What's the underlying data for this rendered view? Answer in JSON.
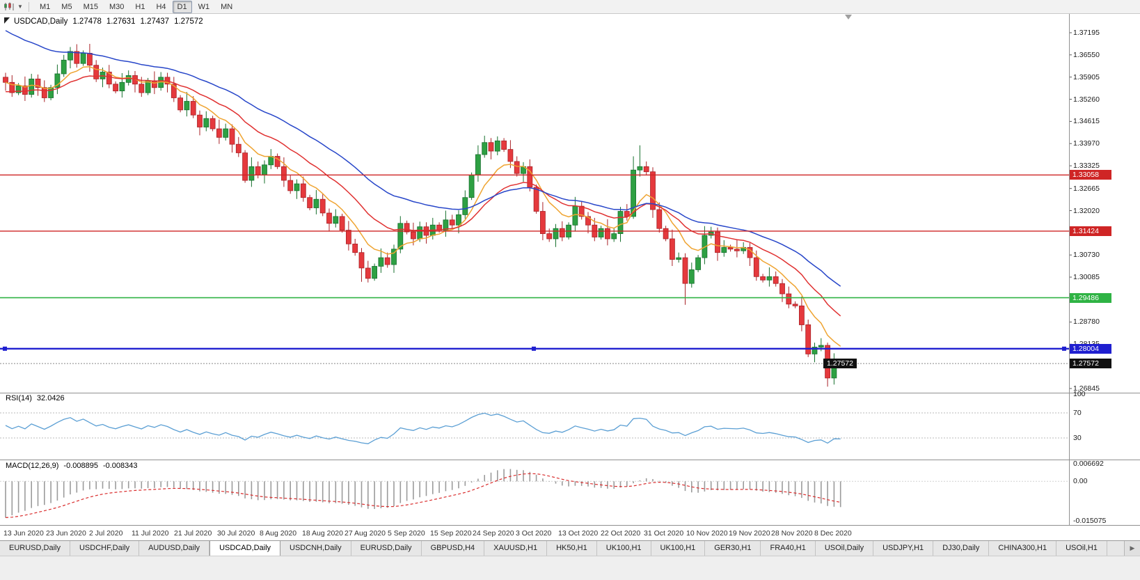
{
  "toolbar": {
    "timeframes": [
      "M1",
      "M5",
      "M15",
      "M30",
      "H1",
      "H4",
      "D1",
      "W1",
      "MN"
    ],
    "selected_timeframe": "D1"
  },
  "header": {
    "symbol_period": "USDCAD,Daily",
    "open": "1.27478",
    "high": "1.27631",
    "low": "1.27437",
    "close": "1.27572"
  },
  "price_axis": {
    "ticks": [
      "1.37195",
      "1.36550",
      "1.35905",
      "1.35260",
      "1.34615",
      "1.33970",
      "1.33325",
      "1.32665",
      "1.32020",
      "1.31375",
      "1.30730",
      "1.30085",
      "1.29440",
      "1.28780",
      "1.28135",
      "1.27490",
      "1.26845"
    ]
  },
  "date_axis": {
    "labels": [
      "13 Jun 2020",
      "23 Jun 2020",
      "2 Jul 2020",
      "11 Jul 2020",
      "21 Jul 2020",
      "30 Jul 2020",
      "8 Aug 2020",
      "18 Aug 2020",
      "27 Aug 2020",
      "5 Sep 2020",
      "15 Sep 2020",
      "24 Sep 2020",
      "3 Oct 2020",
      "13 Oct 2020",
      "22 Oct 2020",
      "31 Oct 2020",
      "10 Nov 2020",
      "19 Nov 2020",
      "28 Nov 2020",
      "8 Dec 2020"
    ]
  },
  "rsi_panel": {
    "label": "RSI(14)",
    "value": "32.0426",
    "axis_ticks": [
      {
        "text": "100",
        "v": 100
      },
      {
        "text": "70",
        "v": 70
      },
      {
        "text": "30",
        "v": 30
      }
    ],
    "level_lines": [
      70,
      30
    ]
  },
  "macd_panel": {
    "label": "MACD(12,26,9)",
    "value_main": "-0.008895",
    "value_signal": "-0.008343",
    "axis_ticks": [
      {
        "text": "0.006692",
        "v": 0.006692
      },
      {
        "text": "0.00",
        "v": 0
      },
      {
        "text": "-0.015075",
        "v": -0.015075
      }
    ]
  },
  "hlines": [
    {
      "name": "resistance-line-upper",
      "price": 1.33058,
      "label": "1.33058",
      "color": "#cf2525",
      "width": 1.4,
      "selected": false
    },
    {
      "name": "resistance-line-lower",
      "price": 1.31424,
      "label": "1.31424",
      "color": "#cf2525",
      "width": 1.4,
      "selected": false
    },
    {
      "name": "support-line-green",
      "price": 1.29486,
      "label": "1.29486",
      "color": "#2fb344",
      "width": 1.6,
      "selected": false
    },
    {
      "name": "support-line-blue",
      "price": 1.28004,
      "label": "1.28004",
      "color": "#1f1fd0",
      "width": 2.4,
      "selected": true
    }
  ],
  "last_price": {
    "value": "1.27572",
    "badge_color": "#111111"
  },
  "tabs": {
    "items": [
      {
        "label": "EURUSD,Daily",
        "active": false
      },
      {
        "label": "USDCHF,Daily",
        "active": false
      },
      {
        "label": "AUDUSD,Daily",
        "active": false
      },
      {
        "label": "USDCAD,Daily",
        "active": true
      },
      {
        "label": "USDCNH,Daily",
        "active": false
      },
      {
        "label": "EURUSD,Daily",
        "active": false
      },
      {
        "label": "GBPUSD,H4",
        "active": false
      },
      {
        "label": "XAUUSD,H1",
        "active": false
      },
      {
        "label": "HK50,H1",
        "active": false
      },
      {
        "label": "UK100,H1",
        "active": false
      },
      {
        "label": "UK100,H1",
        "active": false
      },
      {
        "label": "GER30,H1",
        "active": false
      },
      {
        "label": "FRA40,H1",
        "active": false
      },
      {
        "label": "USOil,Daily",
        "active": false
      },
      {
        "label": "USDJPY,H1",
        "active": false
      },
      {
        "label": "DJ30,Daily",
        "active": false
      },
      {
        "label": "CHINA300,H1",
        "active": false
      },
      {
        "label": "USOil,H1",
        "active": false
      }
    ],
    "scroll_right_icon": "▶"
  },
  "colors": {
    "bull": "#2ea043",
    "bull_border": "#17702e",
    "bear": "#e5393d",
    "bear_border": "#a92227",
    "ma_fast": "#efa431",
    "ma_mid": "#e03131",
    "ma_slow": "#2746c9",
    "rsi_line": "#5b9fd4",
    "rsi_level": "#b8b8b8",
    "macd_bar": "#9b9b9b",
    "macd_signal": "#d92b2b",
    "bid_line": "#888888",
    "badge_black": "#111111"
  },
  "chart_data": {
    "type": "candlestick",
    "symbol": "USDCAD",
    "timeframe": "Daily",
    "ylim": [
      1.26845,
      1.37195
    ],
    "first_open": 1.359,
    "closes": [
      1.3575,
      1.3545,
      1.3565,
      1.354,
      1.3585,
      1.356,
      1.353,
      1.356,
      1.36,
      1.364,
      1.3665,
      1.363,
      1.366,
      1.3625,
      1.3585,
      1.3605,
      1.357,
      1.355,
      1.3575,
      1.3595,
      1.357,
      1.3545,
      1.358,
      1.356,
      1.359,
      1.357,
      1.353,
      1.3495,
      1.352,
      1.348,
      1.3445,
      1.347,
      1.344,
      1.3415,
      1.344,
      1.3395,
      1.337,
      1.329,
      1.333,
      1.3305,
      1.3335,
      1.336,
      1.333,
      1.329,
      1.326,
      1.328,
      1.324,
      1.321,
      1.3235,
      1.3195,
      1.3165,
      1.3185,
      1.3145,
      1.3105,
      1.308,
      1.3035,
      1.3005,
      1.304,
      1.3065,
      1.3045,
      1.309,
      1.3165,
      1.314,
      1.312,
      1.3155,
      1.313,
      1.316,
      1.3145,
      1.3175,
      1.316,
      1.319,
      1.324,
      1.3305,
      1.3365,
      1.34,
      1.3375,
      1.3405,
      1.338,
      1.3345,
      1.331,
      1.333,
      1.327,
      1.32,
      1.3135,
      1.312,
      1.315,
      1.3125,
      1.316,
      1.3215,
      1.3185,
      1.316,
      1.3125,
      1.315,
      1.312,
      1.3135,
      1.32,
      1.3185,
      1.332,
      1.333,
      1.3315,
      1.3205,
      1.315,
      1.312,
      1.306,
      1.3065,
      1.299,
      1.303,
      1.3065,
      1.313,
      1.314,
      1.308,
      1.3095,
      1.309,
      1.3085,
      1.3095,
      1.3065,
      1.301,
      1.3,
      1.301,
      1.299,
      1.296,
      1.293,
      1.2925,
      1.287,
      1.2785,
      1.2805,
      1.281,
      1.2715,
      1.276,
      1.27572
    ],
    "overrides": {
      "55": {
        "l": 1.2995
      },
      "74": {
        "h": 1.342
      },
      "76": {
        "h": 1.3418
      },
      "97": {
        "h": 1.336
      },
      "98": {
        "h": 1.3392
      },
      "105": {
        "l": 1.2928
      },
      "127": {
        "l": 1.269
      },
      "129": {
        "o": 1.27478,
        "h": 1.27631,
        "l": 1.27437,
        "c": 1.27572
      }
    },
    "moving_averages": [
      {
        "name": "ma-fast-orange",
        "period": 8,
        "seed": 1.3575,
        "color_key": "ma_fast"
      },
      {
        "name": "ma-mid-red",
        "period": 18,
        "seed": 1.3545,
        "color_key": "ma_mid"
      },
      {
        "name": "ma-slow-blue",
        "period": 34,
        "seed": 1.3735,
        "color_key": "ma_slow"
      }
    ],
    "rsi": {
      "period": 14
    },
    "macd": {
      "fast": 12,
      "slow": 26,
      "signal": 9,
      "seed_fast": 1.356,
      "seed_slow": 1.371
    }
  }
}
